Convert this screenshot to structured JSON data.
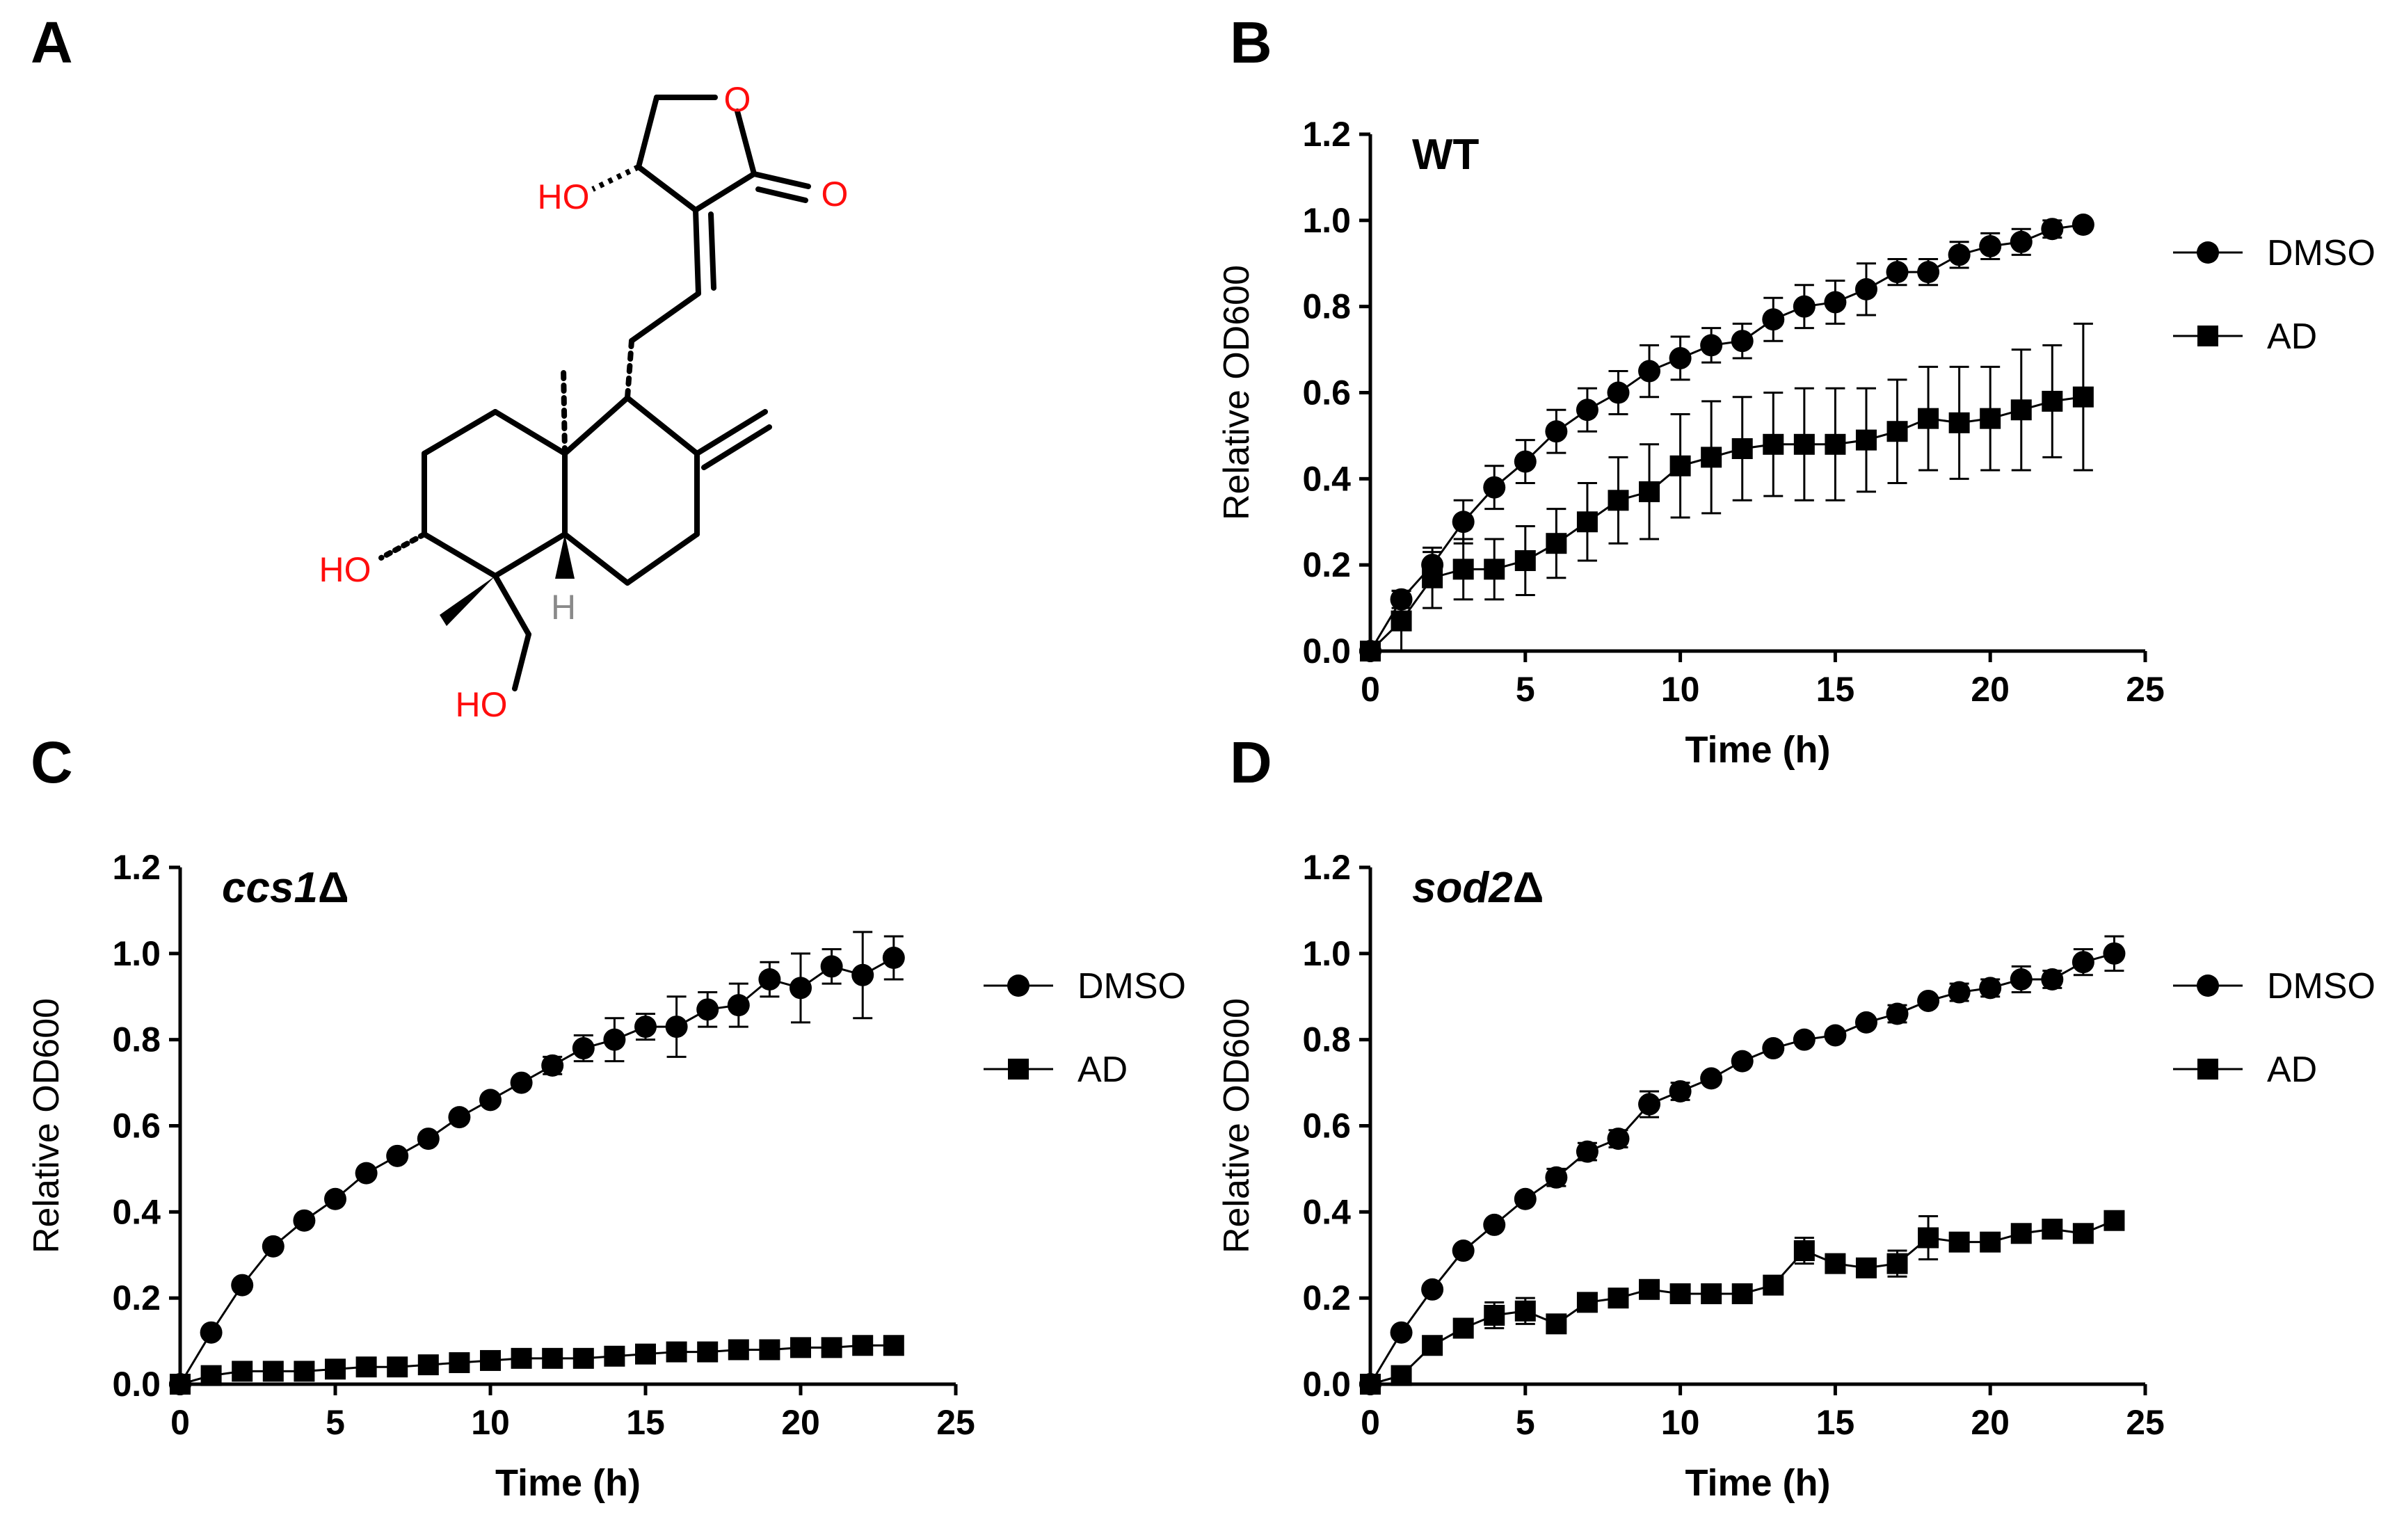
{
  "panels": {
    "A": "A",
    "B": "B",
    "C": "C",
    "D": "D"
  },
  "molecule": {
    "labels": {
      "ring_oxygen": "O",
      "carbonyl_oxygen": "O",
      "ho_lactone": "HO",
      "ho_ring": "HO",
      "ho_methyl": "HO",
      "h": "H"
    }
  },
  "colors": {
    "ink": "#000000",
    "heteroatom": "#ff0d0d",
    "hydrogen": "#8a8a8a"
  },
  "chart_data": [
    {
      "id": "B",
      "type": "line",
      "title": "WT",
      "title_italic": false,
      "title_suffix": "",
      "xlabel": "Time (h)",
      "ylabel": "Relative OD600",
      "xlim": [
        0,
        25
      ],
      "ylim": [
        0,
        1.2
      ],
      "xticks": [
        0,
        5,
        10,
        15,
        20,
        25
      ],
      "yticks": [
        "0.0",
        "0.2",
        "0.4",
        "0.6",
        "0.8",
        "1.0",
        "1.2"
      ],
      "legend": [
        "DMSO",
        "AD"
      ],
      "series": [
        {
          "name": "DMSO",
          "marker": "circle",
          "x": [
            0,
            1,
            2,
            3,
            4,
            5,
            6,
            7,
            8,
            9,
            10,
            11,
            12,
            13,
            14,
            15,
            16,
            17,
            18,
            19,
            20,
            21,
            22,
            23
          ],
          "y": [
            0,
            0.12,
            0.2,
            0.3,
            0.38,
            0.44,
            0.51,
            0.56,
            0.6,
            0.65,
            0.68,
            0.71,
            0.72,
            0.77,
            0.8,
            0.81,
            0.84,
            0.88,
            0.88,
            0.92,
            0.94,
            0.95,
            0.98,
            0.99
          ],
          "err": [
            0,
            0.02,
            0.03,
            0.05,
            0.05,
            0.05,
            0.05,
            0.05,
            0.05,
            0.06,
            0.05,
            0.04,
            0.04,
            0.05,
            0.05,
            0.05,
            0.06,
            0.03,
            0.03,
            0.03,
            0.03,
            0.03,
            0.02,
            0.01
          ]
        },
        {
          "name": "AD",
          "marker": "square",
          "x": [
            0,
            1,
            2,
            3,
            4,
            5,
            6,
            7,
            8,
            9,
            10,
            11,
            12,
            13,
            14,
            15,
            16,
            17,
            18,
            19,
            20,
            21,
            22,
            23
          ],
          "y": [
            0,
            0.07,
            0.17,
            0.19,
            0.19,
            0.21,
            0.25,
            0.3,
            0.35,
            0.37,
            0.43,
            0.45,
            0.47,
            0.48,
            0.48,
            0.48,
            0.49,
            0.51,
            0.54,
            0.53,
            0.54,
            0.56,
            0.58,
            0.59
          ],
          "err": [
            0,
            0.07,
            0.07,
            0.07,
            0.07,
            0.08,
            0.08,
            0.09,
            0.1,
            0.11,
            0.12,
            0.13,
            0.12,
            0.12,
            0.13,
            0.13,
            0.12,
            0.12,
            0.12,
            0.13,
            0.12,
            0.14,
            0.13,
            0.17
          ]
        }
      ]
    },
    {
      "id": "C",
      "type": "line",
      "title": "ccs1",
      "title_italic": true,
      "title_suffix": "Δ",
      "xlabel": "Time (h)",
      "ylabel": "Relative OD600",
      "xlim": [
        0,
        25
      ],
      "ylim": [
        0,
        1.2
      ],
      "xticks": [
        0,
        5,
        10,
        15,
        20,
        25
      ],
      "yticks": [
        "0.0",
        "0.2",
        "0.4",
        "0.6",
        "0.8",
        "1.0",
        "1.2"
      ],
      "legend": [
        "DMSO",
        "AD"
      ],
      "series": [
        {
          "name": "DMSO",
          "marker": "circle",
          "x": [
            0,
            1,
            2,
            3,
            4,
            5,
            6,
            7,
            8,
            9,
            10,
            11,
            12,
            13,
            14,
            15,
            16,
            17,
            18,
            19,
            20,
            21,
            22,
            23
          ],
          "y": [
            0,
            0.12,
            0.23,
            0.32,
            0.38,
            0.43,
            0.49,
            0.53,
            0.57,
            0.62,
            0.66,
            0.7,
            0.74,
            0.78,
            0.8,
            0.83,
            0.83,
            0.87,
            0.88,
            0.94,
            0.92,
            0.97,
            0.95,
            0.99
          ],
          "err": [
            0,
            0.01,
            0.01,
            0.01,
            0.01,
            0.01,
            0.01,
            0.01,
            0.01,
            0.01,
            0.01,
            0.01,
            0.02,
            0.03,
            0.05,
            0.03,
            0.07,
            0.04,
            0.05,
            0.04,
            0.08,
            0.04,
            0.1,
            0.05
          ]
        },
        {
          "name": "AD",
          "marker": "square",
          "x": [
            0,
            1,
            2,
            3,
            4,
            5,
            6,
            7,
            8,
            9,
            10,
            11,
            12,
            13,
            14,
            15,
            16,
            17,
            18,
            19,
            20,
            21,
            22,
            23
          ],
          "y": [
            0,
            0.02,
            0.03,
            0.03,
            0.03,
            0.035,
            0.04,
            0.04,
            0.045,
            0.05,
            0.055,
            0.06,
            0.06,
            0.06,
            0.065,
            0.07,
            0.075,
            0.075,
            0.08,
            0.08,
            0.085,
            0.085,
            0.09,
            0.09
          ],
          "err": [
            0,
            0.01,
            0.01,
            0.01,
            0.01,
            0.01,
            0.01,
            0.01,
            0.01,
            0.01,
            0.01,
            0.01,
            0.01,
            0.01,
            0.01,
            0.01,
            0.01,
            0.01,
            0.01,
            0.01,
            0.01,
            0.01,
            0.01,
            0.01
          ]
        }
      ]
    },
    {
      "id": "D",
      "type": "line",
      "title": "sod2",
      "title_italic": true,
      "title_suffix": "Δ",
      "xlabel": "Time (h)",
      "ylabel": "Relative OD600",
      "xlim": [
        0,
        25
      ],
      "ylim": [
        0,
        1.2
      ],
      "xticks": [
        0,
        5,
        10,
        15,
        20,
        25
      ],
      "yticks": [
        "0.0",
        "0.2",
        "0.4",
        "0.6",
        "0.8",
        "1.0",
        "1.2"
      ],
      "legend": [
        "DMSO",
        "AD"
      ],
      "series": [
        {
          "name": "DMSO",
          "marker": "circle",
          "x": [
            0,
            1,
            2,
            3,
            4,
            5,
            6,
            7,
            8,
            9,
            10,
            11,
            12,
            13,
            14,
            15,
            16,
            17,
            18,
            19,
            20,
            21,
            22,
            23,
            24
          ],
          "y": [
            0,
            0.12,
            0.22,
            0.31,
            0.37,
            0.43,
            0.48,
            0.54,
            0.57,
            0.65,
            0.68,
            0.71,
            0.75,
            0.78,
            0.8,
            0.81,
            0.84,
            0.86,
            0.89,
            0.91,
            0.92,
            0.94,
            0.94,
            0.98,
            1.0
          ],
          "err": [
            0,
            0.01,
            0.01,
            0.01,
            0.01,
            0.01,
            0.02,
            0.02,
            0.02,
            0.03,
            0.02,
            0.01,
            0.01,
            0.01,
            0.01,
            0.01,
            0.01,
            0.02,
            0.01,
            0.02,
            0.02,
            0.03,
            0.02,
            0.03,
            0.04
          ]
        },
        {
          "name": "AD",
          "marker": "square",
          "x": [
            0,
            1,
            2,
            3,
            4,
            5,
            6,
            7,
            8,
            9,
            10,
            11,
            12,
            13,
            14,
            15,
            16,
            17,
            18,
            19,
            20,
            21,
            22,
            23,
            24
          ],
          "y": [
            0,
            0.02,
            0.09,
            0.13,
            0.16,
            0.17,
            0.14,
            0.19,
            0.2,
            0.22,
            0.21,
            0.21,
            0.21,
            0.23,
            0.31,
            0.28,
            0.27,
            0.28,
            0.34,
            0.33,
            0.33,
            0.35,
            0.36,
            0.35,
            0.38
          ],
          "err": [
            0,
            0.01,
            0.01,
            0.02,
            0.03,
            0.03,
            0.01,
            0.01,
            0.01,
            0.02,
            0.02,
            0.01,
            0.01,
            0.02,
            0.03,
            0.02,
            0.02,
            0.03,
            0.05,
            0.02,
            0.01,
            0.01,
            0.01,
            0.02,
            0.01
          ]
        }
      ]
    }
  ]
}
